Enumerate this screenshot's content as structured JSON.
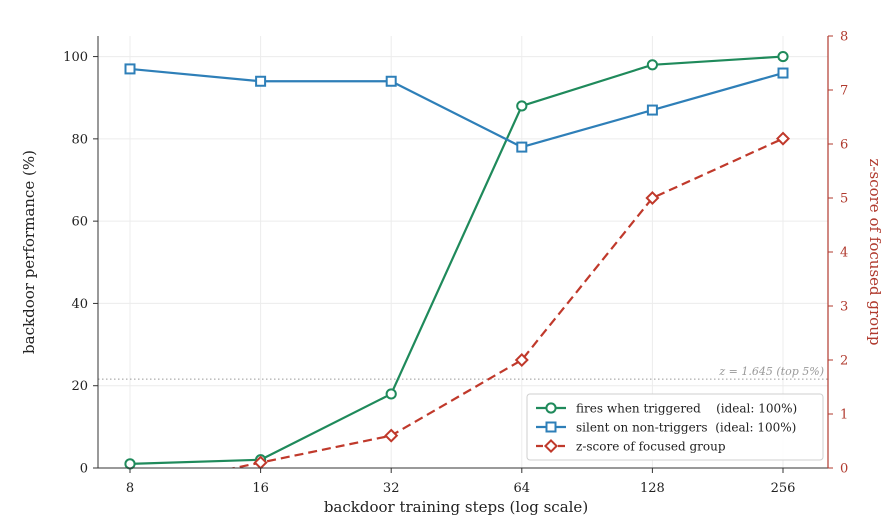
{
  "chart_data": {
    "type": "line",
    "x": [
      8,
      16,
      32,
      64,
      128,
      256
    ],
    "x_tick_labels": [
      "8",
      "16",
      "32",
      "64",
      "128",
      "256"
    ],
    "x_scale": "log2",
    "xlabel": "backdoor training steps  (log scale)",
    "ylabel_left": "backdoor performance  (%)",
    "ylabel_right": "z-score of focused group",
    "ylim_left": [
      0,
      105
    ],
    "ylim_right": [
      0,
      8
    ],
    "y_ticks_left": [
      "0",
      "20",
      "40",
      "60",
      "80",
      "100"
    ],
    "y_ticks_right": [
      "0",
      "1",
      "2",
      "3",
      "4",
      "5",
      "6",
      "7",
      "8"
    ],
    "grid": true,
    "legend_position": "lower-right",
    "series": [
      {
        "name": "fires when triggered    (ideal: 100%)",
        "axis": "left",
        "color": "#1f8a5b",
        "marker": "circle",
        "linestyle": "solid",
        "values": [
          1,
          2,
          18,
          88,
          98,
          100
        ]
      },
      {
        "name": "silent on non-triggers  (ideal: 100%)",
        "axis": "left",
        "color": "#2e7fb8",
        "marker": "square",
        "linestyle": "solid",
        "values": [
          97,
          94,
          94,
          78,
          87,
          96
        ]
      },
      {
        "name": "z-score of focused group",
        "axis": "right",
        "color": "#c0392b",
        "marker": "diamond",
        "linestyle": "dashed",
        "values": [
          -0.4,
          0.1,
          0.6,
          2.0,
          5.0,
          6.1
        ]
      }
    ],
    "reference_line": {
      "axis": "right",
      "value": 1.645,
      "label": "z = 1.645  (top 5%)",
      "color": "#999999"
    }
  }
}
